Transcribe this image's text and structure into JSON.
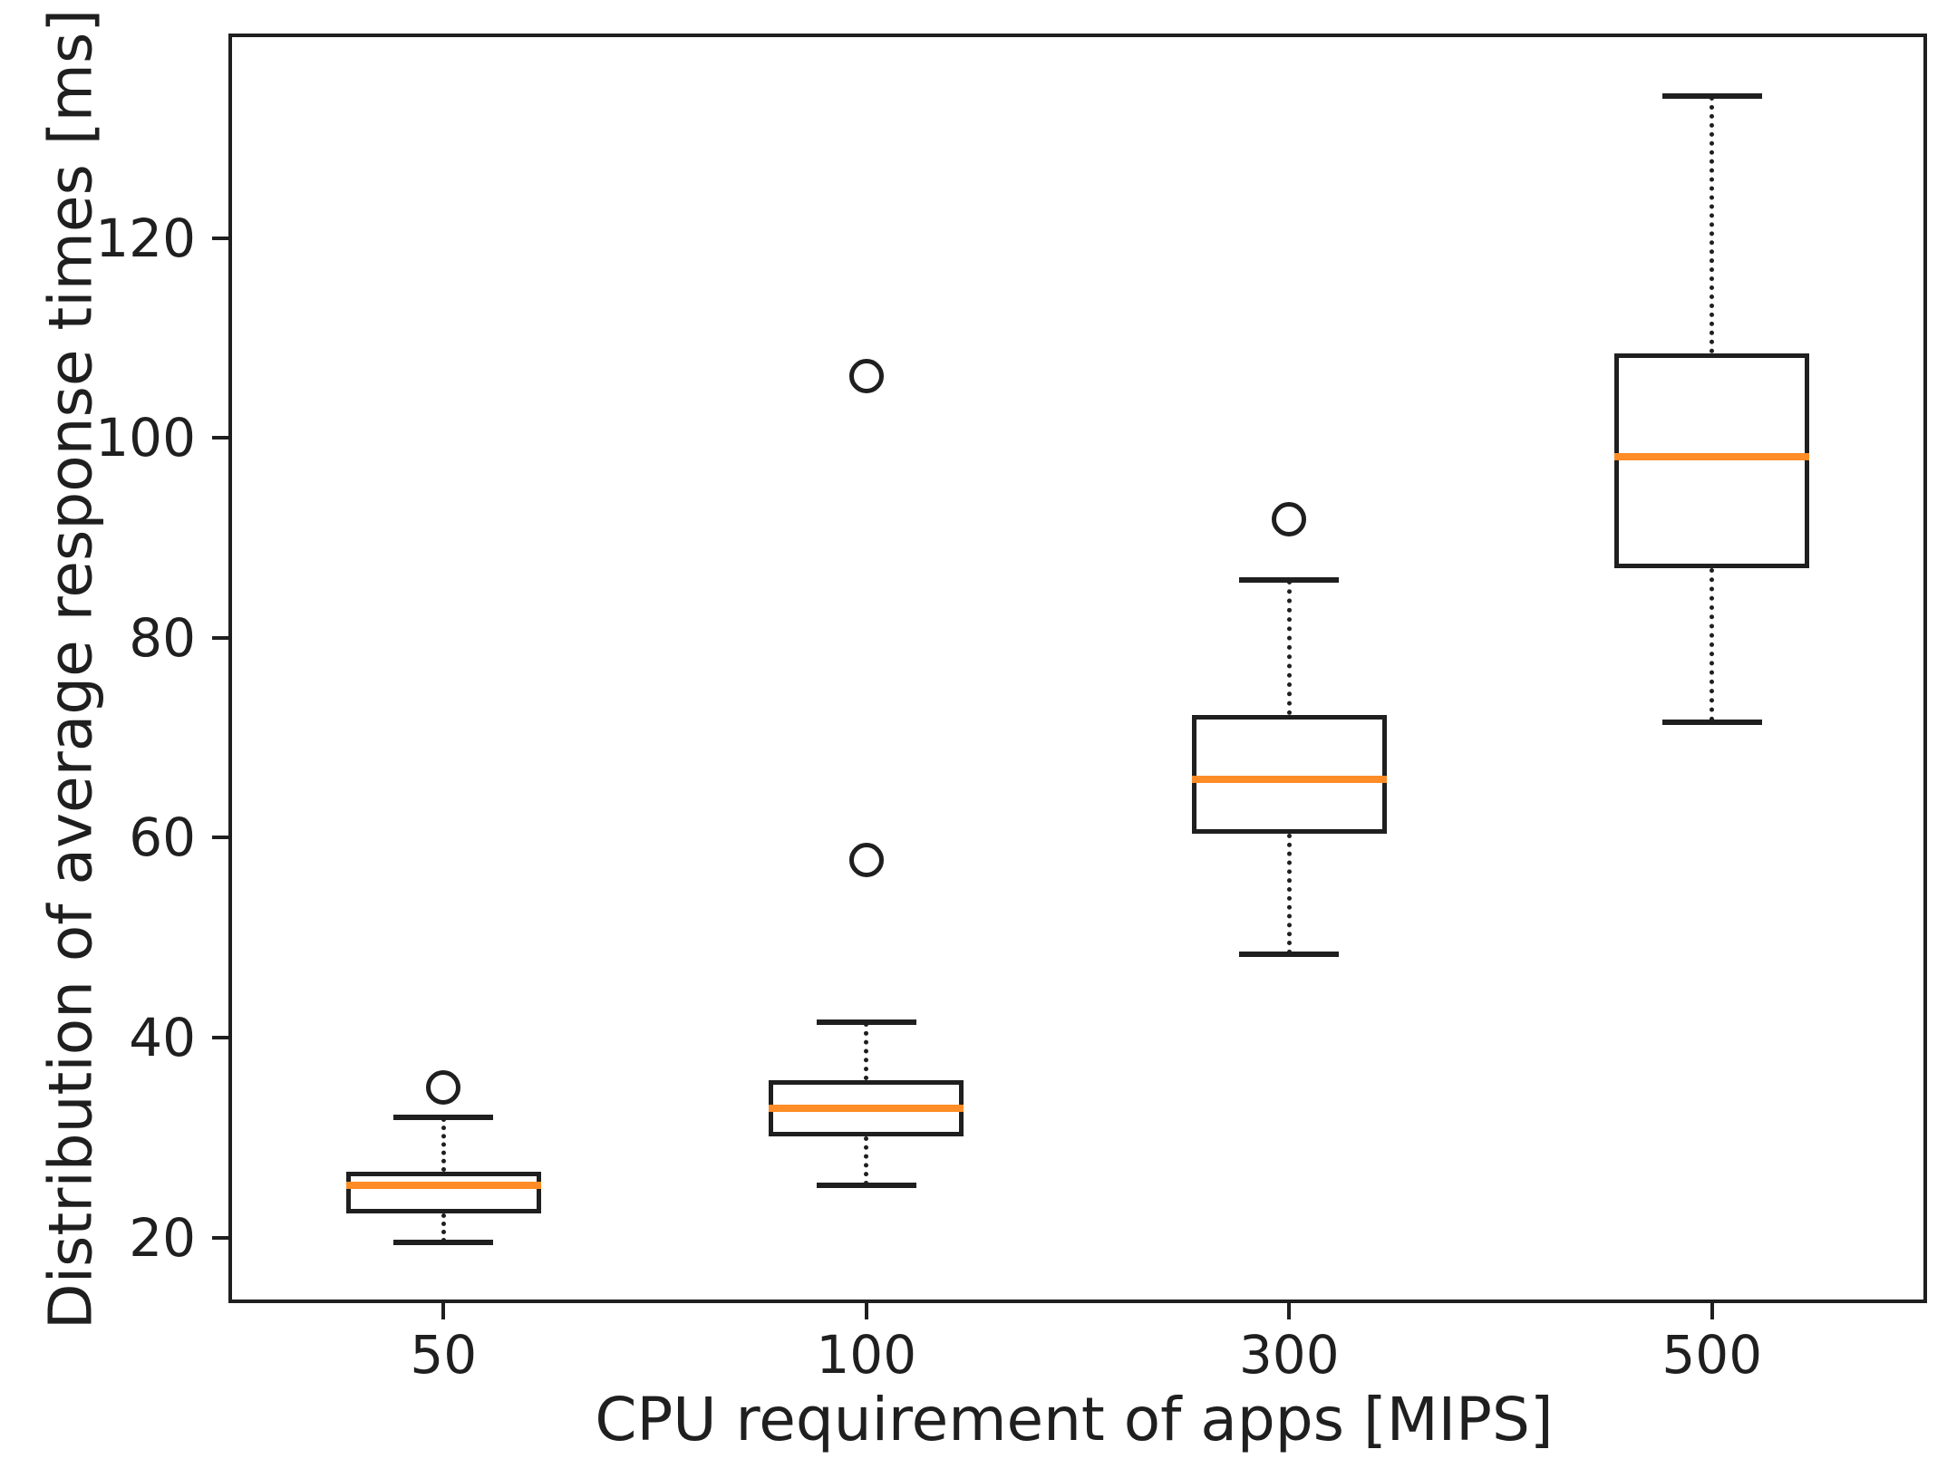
{
  "figure": {
    "background": "#ffffff"
  },
  "chart_data": {
    "type": "boxplot",
    "title": "",
    "xlabel": "CPU requirement of apps [MIPS]",
    "ylabel": "Distribution of average response times [ms]",
    "categories": [
      "50",
      "100",
      "300",
      "500"
    ],
    "yticks": [
      20,
      40,
      60,
      80,
      100,
      120
    ],
    "ylim": [
      13.8,
      140.1
    ],
    "grid": false,
    "legend": "none",
    "colors": {
      "line": "#1f1f1f",
      "median": "#ff8c26",
      "background": "#ffffff"
    },
    "whisker_linestyle": "dotted",
    "series": [
      {
        "category": "50",
        "whisker_low": 19.5,
        "q1": 22.4,
        "median": 25.2,
        "q3": 26.6,
        "whisker_high": 32.0,
        "outliers": [
          35.0
        ]
      },
      {
        "category": "100",
        "whisker_low": 25.2,
        "q1": 30.1,
        "median": 32.9,
        "q3": 35.7,
        "whisker_high": 41.5,
        "outliers": [
          57.8,
          106.2
        ]
      },
      {
        "category": "300",
        "whisker_low": 48.3,
        "q1": 60.4,
        "median": 65.8,
        "q3": 72.3,
        "whisker_high": 85.8,
        "outliers": [
          91.9
        ]
      },
      {
        "category": "500",
        "whisker_low": 71.6,
        "q1": 87.0,
        "median": 98.1,
        "q3": 108.5,
        "whisker_high": 134.2,
        "outliers": []
      }
    ]
  }
}
